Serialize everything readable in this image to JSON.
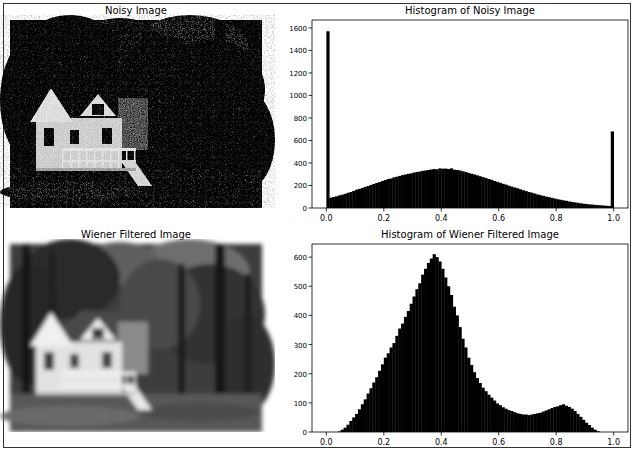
{
  "chart_data": [
    {
      "type": "image",
      "title": "Noisy Image"
    },
    {
      "type": "histogram",
      "title": "Histogram of Noisy Image",
      "color": "#000000",
      "bins": [
        0,
        0.01,
        0.02,
        0.03,
        0.04,
        0.05,
        0.06,
        0.07,
        0.08,
        0.09,
        0.1,
        0.11,
        0.12,
        0.13,
        0.14,
        0.15,
        0.16,
        0.17,
        0.18,
        0.19,
        0.2,
        0.21,
        0.22,
        0.23,
        0.24,
        0.25,
        0.26,
        0.27,
        0.28,
        0.29,
        0.3,
        0.31,
        0.32,
        0.33,
        0.34,
        0.35,
        0.36,
        0.37,
        0.38,
        0.39,
        0.4,
        0.41,
        0.42,
        0.43,
        0.44,
        0.45,
        0.46,
        0.47,
        0.48,
        0.49,
        0.5,
        0.51,
        0.52,
        0.53,
        0.54,
        0.55,
        0.56,
        0.57,
        0.58,
        0.59,
        0.6,
        0.61,
        0.62,
        0.63,
        0.64,
        0.65,
        0.66,
        0.67,
        0.68,
        0.69,
        0.7,
        0.71,
        0.72,
        0.73,
        0.74,
        0.75,
        0.76,
        0.77,
        0.78,
        0.79,
        0.8,
        0.81,
        0.82,
        0.83,
        0.84,
        0.85,
        0.86,
        0.87,
        0.88,
        0.89,
        0.9,
        0.91,
        0.92,
        0.93,
        0.94,
        0.95,
        0.96,
        0.97,
        0.98,
        0.99,
        1
      ],
      "values": [
        1570,
        92,
        98,
        104,
        112,
        118,
        126,
        135,
        142,
        152,
        163,
        170,
        178,
        188,
        195,
        205,
        214,
        222,
        230,
        240,
        248,
        258,
        262,
        272,
        278,
        285,
        292,
        298,
        303,
        308,
        315,
        320,
        324,
        330,
        333,
        338,
        342,
        346,
        344,
        352,
        349,
        350,
        347,
        352,
        340,
        338,
        333,
        326,
        320,
        312,
        304,
        298,
        290,
        282,
        274,
        266,
        258,
        250,
        240,
        232,
        224,
        215,
        208,
        198,
        190,
        182,
        175,
        166,
        158,
        150,
        142,
        136,
        128,
        120,
        114,
        108,
        101,
        96,
        90,
        84,
        78,
        73,
        68,
        64,
        58,
        54,
        50,
        46,
        42,
        38,
        35,
        32,
        30,
        28,
        26,
        24,
        22,
        20,
        18,
        680
      ],
      "xlim": [
        -0.05,
        1.05
      ],
      "xticks": [
        {
          "value": 0,
          "label": "0.0"
        },
        0.2,
        0.4,
        0.6,
        0.8,
        {
          "value": 1,
          "label": "1.0"
        }
      ],
      "ylim": [
        0,
        1670
      ],
      "yticks": [
        0,
        200,
        400,
        600,
        800,
        1000,
        1200,
        1400,
        1600
      ]
    },
    {
      "type": "image",
      "title": "Wiener Filtered Image"
    },
    {
      "type": "histogram",
      "title": "Histogram of Wiener Filtered Image",
      "color": "#000000",
      "bins": [
        0,
        0.01,
        0.02,
        0.03,
        0.04,
        0.05,
        0.06,
        0.07,
        0.08,
        0.09,
        0.1,
        0.11,
        0.12,
        0.13,
        0.14,
        0.15,
        0.16,
        0.17,
        0.18,
        0.19,
        0.2,
        0.21,
        0.22,
        0.23,
        0.24,
        0.25,
        0.26,
        0.27,
        0.28,
        0.29,
        0.3,
        0.31,
        0.32,
        0.33,
        0.34,
        0.35,
        0.36,
        0.37,
        0.38,
        0.39,
        0.4,
        0.41,
        0.42,
        0.43,
        0.44,
        0.45,
        0.46,
        0.47,
        0.48,
        0.49,
        0.5,
        0.51,
        0.52,
        0.53,
        0.54,
        0.55,
        0.56,
        0.57,
        0.58,
        0.59,
        0.6,
        0.61,
        0.62,
        0.63,
        0.64,
        0.65,
        0.66,
        0.67,
        0.68,
        0.69,
        0.7,
        0.71,
        0.72,
        0.73,
        0.74,
        0.75,
        0.76,
        0.77,
        0.78,
        0.79,
        0.8,
        0.81,
        0.82,
        0.83,
        0.84,
        0.85,
        0.86,
        0.87,
        0.88,
        0.89,
        0.9,
        0.91,
        0.92,
        0.93,
        0.94,
        0.95,
        0.96,
        0.97,
        0.98,
        0.99,
        1
      ],
      "values": [
        0,
        0,
        0,
        0,
        2,
        8,
        15,
        25,
        38,
        50,
        62,
        78,
        95,
        112,
        132,
        150,
        170,
        188,
        210,
        232,
        255,
        270,
        290,
        305,
        330,
        355,
        372,
        395,
        415,
        440,
        465,
        490,
        510,
        540,
        560,
        580,
        595,
        610,
        600,
        585,
        560,
        530,
        500,
        470,
        430,
        400,
        360,
        320,
        290,
        255,
        230,
        205,
        185,
        168,
        152,
        140,
        128,
        118,
        108,
        98,
        92,
        85,
        80,
        75,
        72,
        68,
        64,
        62,
        60,
        60,
        58,
        60,
        62,
        64,
        66,
        70,
        74,
        78,
        82,
        86,
        88,
        92,
        95,
        90,
        86,
        80,
        72,
        62,
        52,
        42,
        32,
        24,
        15,
        8,
        3,
        0,
        0,
        0,
        0,
        0
      ],
      "xlim": [
        -0.05,
        1.05
      ],
      "xticks": [
        {
          "value": 0,
          "label": "0.0"
        },
        0.2,
        0.4,
        0.6,
        0.8,
        {
          "value": 1,
          "label": "1.0"
        }
      ],
      "ylim": [
        0,
        645
      ],
      "yticks": [
        0,
        100,
        200,
        300,
        400,
        500,
        600
      ]
    }
  ]
}
